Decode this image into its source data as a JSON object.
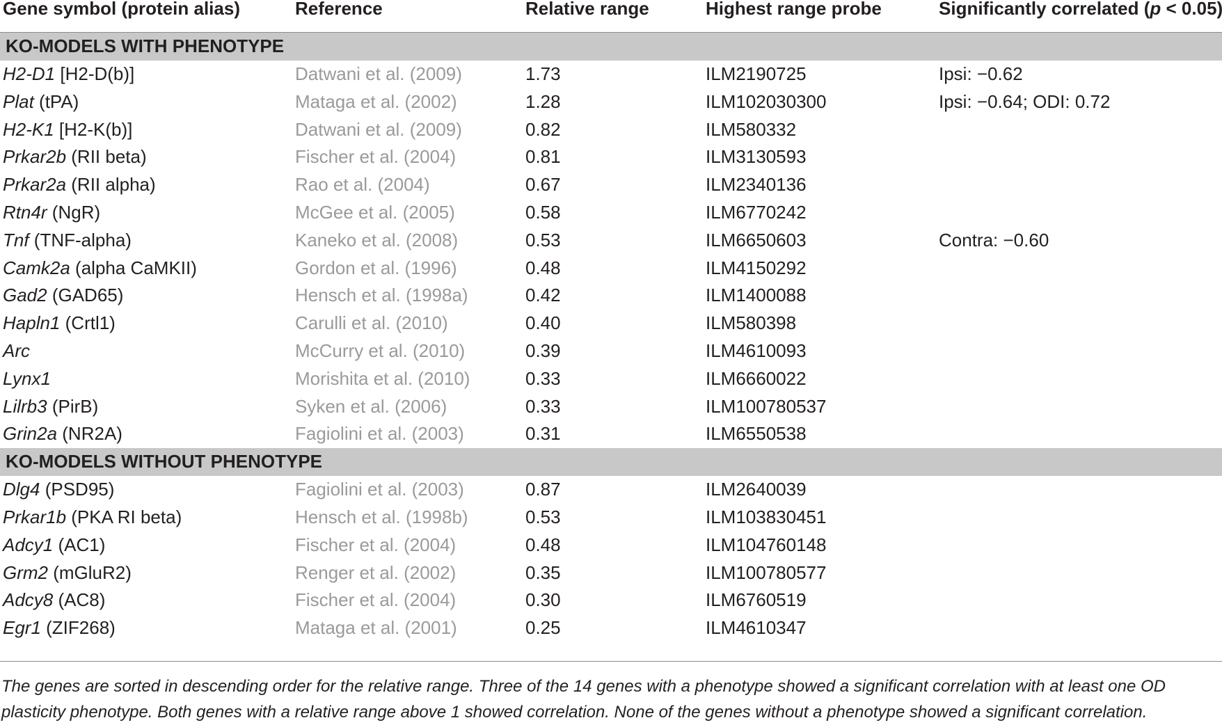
{
  "header": {
    "gene": "Gene symbol (protein alias)",
    "reference": "Reference",
    "relative_range": "Relative range",
    "highest_probe": "Highest range probe",
    "correlated_prefix": "Significantly correlated (",
    "correlated_p": "p",
    "correlated_suffix": " < 0.05)"
  },
  "sections": [
    {
      "label": "KO-MODELS WITH PHENOTYPE",
      "rows": [
        {
          "symbol": "H2-D1",
          "alias": " [H2-D(b)]",
          "reference": "Datwani et al. (2009)",
          "range": "1.73",
          "probe": "ILM2190725",
          "corr": "Ipsi: −0.62"
        },
        {
          "symbol": "Plat",
          "alias": " (tPA)",
          "reference": "Mataga et al. (2002)",
          "range": "1.28",
          "probe": "ILM102030300",
          "corr": "Ipsi: −0.64; ODI: 0.72"
        },
        {
          "symbol": "H2-K1",
          "alias": " [H2-K(b)]",
          "reference": "Datwani et al. (2009)",
          "range": "0.82",
          "probe": "ILM580332",
          "corr": ""
        },
        {
          "symbol": "Prkar2b",
          "alias": " (RII beta)",
          "reference": "Fischer et al. (2004)",
          "range": "0.81",
          "probe": "ILM3130593",
          "corr": ""
        },
        {
          "symbol": "Prkar2a",
          "alias": " (RII alpha)",
          "reference": "Rao et al. (2004)",
          "range": "0.67",
          "probe": "ILM2340136",
          "corr": ""
        },
        {
          "symbol": "Rtn4r",
          "alias": " (NgR)",
          "reference": "McGee et al. (2005)",
          "range": "0.58",
          "probe": "ILM6770242",
          "corr": ""
        },
        {
          "symbol": "Tnf",
          "alias": " (TNF-alpha)",
          "reference": "Kaneko et al. (2008)",
          "range": "0.53",
          "probe": "ILM6650603",
          "corr": "Contra: −0.60"
        },
        {
          "symbol": "Camk2a",
          "alias": " (alpha CaMKII)",
          "reference": "Gordon et al. (1996)",
          "range": "0.48",
          "probe": "ILM4150292",
          "corr": ""
        },
        {
          "symbol": "Gad2",
          "alias": " (GAD65)",
          "reference": "Hensch et al. (1998a)",
          "range": "0.42",
          "probe": "ILM1400088",
          "corr": ""
        },
        {
          "symbol": "Hapln1",
          "alias": " (Crtl1)",
          "reference": "Carulli et al. (2010)",
          "range": "0.40",
          "probe": "ILM580398",
          "corr": ""
        },
        {
          "symbol": "Arc",
          "alias": "",
          "reference": "McCurry et al. (2010)",
          "range": "0.39",
          "probe": "ILM4610093",
          "corr": ""
        },
        {
          "symbol": "Lynx1",
          "alias": "",
          "reference": "Morishita et al. (2010)",
          "range": "0.33",
          "probe": "ILM6660022",
          "corr": ""
        },
        {
          "symbol": "Lilrb3",
          "alias": " (PirB)",
          "reference": "Syken et al. (2006)",
          "range": "0.33",
          "probe": "ILM100780537",
          "corr": ""
        },
        {
          "symbol": "Grin2a",
          "alias": " (NR2A)",
          "reference": "Fagiolini et al. (2003)",
          "range": "0.31",
          "probe": "ILM6550538",
          "corr": ""
        }
      ]
    },
    {
      "label": "KO-MODELS WITHOUT PHENOTYPE",
      "rows": [
        {
          "symbol": "Dlg4",
          "alias": " (PSD95)",
          "reference": "Fagiolini et al. (2003)",
          "range": "0.87",
          "probe": "ILM2640039",
          "corr": ""
        },
        {
          "symbol": "Prkar1b",
          "alias": " (PKA RI beta)",
          "reference": "Hensch et al. (1998b)",
          "range": "0.53",
          "probe": "ILM103830451",
          "corr": ""
        },
        {
          "symbol": "Adcy1",
          "alias": " (AC1)",
          "reference": "Fischer et al. (2004)",
          "range": "0.48",
          "probe": "ILM104760148",
          "corr": ""
        },
        {
          "symbol": "Grm2",
          "alias": " (mGluR2)",
          "reference": "Renger et al. (2002)",
          "range": "0.35",
          "probe": "ILM100780577",
          "corr": ""
        },
        {
          "symbol": "Adcy8",
          "alias": " (AC8)",
          "reference": "Fischer et al. (2004)",
          "range": "0.30",
          "probe": "ILM6760519",
          "corr": ""
        },
        {
          "symbol": "Egr1",
          "alias": " (ZIF268)",
          "reference": "Mataga et al. (2001)",
          "range": "0.25",
          "probe": "ILM4610347",
          "corr": ""
        }
      ]
    }
  ],
  "footnote": "The genes are sorted in descending order for the relative range. Three of the 14 genes with a phenotype showed a significant correlation with at least one OD plasticity phenotype. Both genes with a relative range above 1 showed correlation. None of the genes without a phenotype showed a significant correlation."
}
